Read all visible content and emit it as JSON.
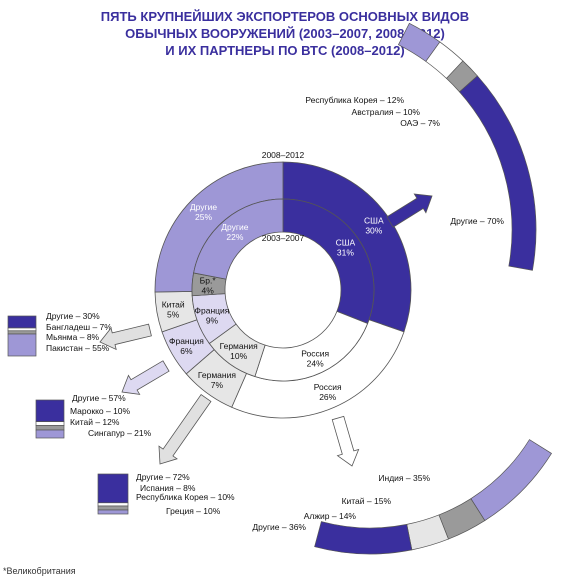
{
  "title_lines": [
    "ПЯТЬ КРУПНЕЙШИХ ЭКСПОРТЕРОВ ОСНОВНЫХ ВИДОВ",
    "ОБЫЧНЫХ ВООРУЖЕНИЙ (2003–2007, 2008–2012)",
    "И ИХ ПАРТНЕРЫ ПО ВТС (2008–2012)"
  ],
  "footnote": "*Великобритания",
  "colors": {
    "usa": "#3a2f9e",
    "other": "#9e97d6",
    "light": "#ddd9f1",
    "grey": "#9a9a9a",
    "lightgrey": "#e6e6e6",
    "russia": "#ffffff"
  },
  "chart_data": [
    {
      "type": "pie",
      "subtype": "donut",
      "ring": "outer",
      "label": "2008–2012",
      "categories": [
        "США",
        "Россия",
        "Германия",
        "Франция",
        "Китай",
        "Другие"
      ],
      "values": [
        30,
        26,
        7,
        6,
        5,
        25
      ],
      "display": [
        "США\n30%",
        "Россия\n26%",
        "Германия\n7%",
        "Франция\n6%",
        "Китай\n5%",
        "Другие\n25%"
      ]
    },
    {
      "type": "pie",
      "subtype": "donut",
      "ring": "inner",
      "label": "2003–2007",
      "categories": [
        "США",
        "Россия",
        "Германия",
        "Франция",
        "Бр.*",
        "Другие"
      ],
      "values": [
        31,
        24,
        10,
        9,
        4,
        22
      ],
      "display": [
        "США\n31%",
        "Россия\n24%",
        "Германия\n10%",
        "Франция\n9%",
        "Бр.*\n4%",
        "Другие\n22%"
      ]
    },
    {
      "type": "bar",
      "subtype": "stacked-100",
      "exporter": "США",
      "categories": [
        "Республика Корея",
        "Австралия",
        "ОАЭ",
        "Другие"
      ],
      "values": [
        12,
        10,
        7,
        70
      ],
      "labels": [
        "Республика Корея – 12%",
        "Австралия – 10%",
        "ОАЭ – 7%",
        "Другие – 70%"
      ]
    },
    {
      "type": "bar",
      "subtype": "stacked-100",
      "exporter": "Россия",
      "categories": [
        "Индия",
        "Китай",
        "Алжир",
        "Другие"
      ],
      "values": [
        35,
        15,
        14,
        36
      ],
      "labels": [
        "Индия – 35%",
        "Китай – 15%",
        "Алжир – 14%",
        "Другие – 36%"
      ]
    },
    {
      "type": "bar",
      "subtype": "stacked-100",
      "exporter": "Китай",
      "categories": [
        "Другие",
        "Бангладеш",
        "Мьянма",
        "Пакистан"
      ],
      "values": [
        30,
        7,
        8,
        55
      ],
      "labels": [
        "Другие – 30%",
        "Бангладеш – 7%",
        "Мьянма – 8%",
        "Пакистан – 55%"
      ]
    },
    {
      "type": "bar",
      "subtype": "stacked-100",
      "exporter": "Франция",
      "categories": [
        "Другие",
        "Марокко",
        "Китай",
        "Сингапур"
      ],
      "values": [
        57,
        10,
        12,
        21
      ],
      "labels": [
        "Другие – 57%",
        "Марокко – 10%",
        "Китай – 12%",
        "Сингапур – 21%"
      ]
    },
    {
      "type": "bar",
      "subtype": "stacked-100",
      "exporter": "Германия",
      "categories": [
        "Другие",
        "Испания",
        "Республика Корея",
        "Греция"
      ],
      "values": [
        72,
        8,
        10,
        10
      ],
      "labels": [
        "Другие – 72%",
        "Испания – 8%",
        "Республика Корея – 10%",
        "Греция – 10%"
      ]
    }
  ]
}
